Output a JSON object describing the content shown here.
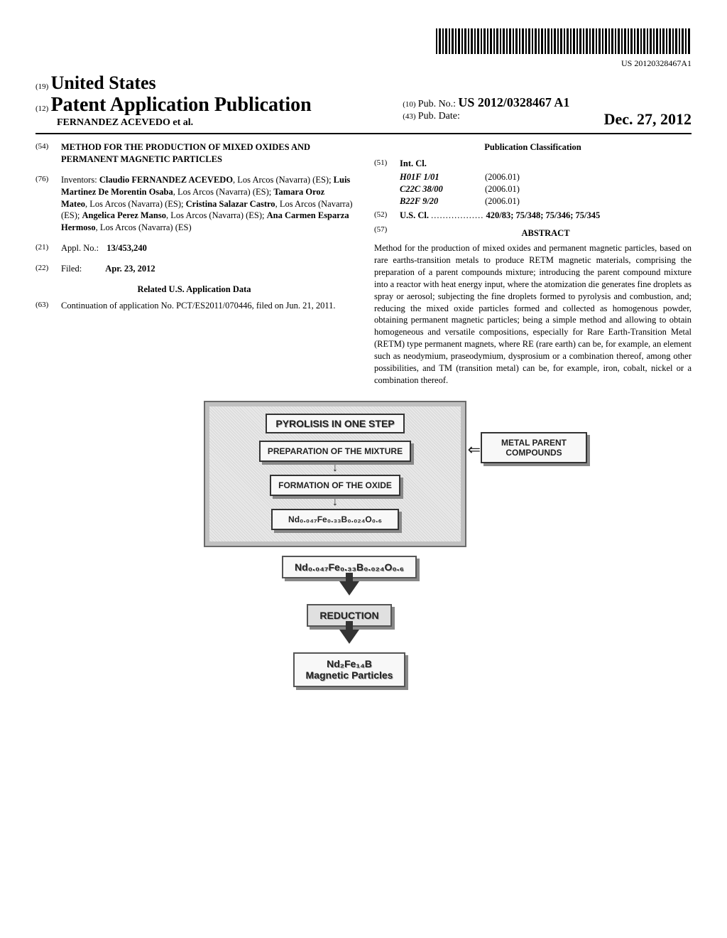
{
  "barcode_number": "US 20120328467A1",
  "header": {
    "prefix19": "(19)",
    "country": "United States",
    "prefix12": "(12)",
    "pub_type": "Patent Application Publication",
    "applicant": "FERNANDEZ ACEVEDO et al.",
    "prefix10": "(10)",
    "pubno_label": "Pub. No.:",
    "pubno": "US 2012/0328467 A1",
    "prefix43": "(43)",
    "pubdate_label": "Pub. Date:",
    "pubdate": "Dec. 27, 2012"
  },
  "left": {
    "n54": "(54)",
    "title": "METHOD FOR THE PRODUCTION OF MIXED OXIDES AND PERMANENT MAGNETIC PARTICLES",
    "n76": "(76)",
    "inventors_label": "Inventors:",
    "inventors_html": "<b>Claudio FERNANDEZ ACEVEDO</b>, Los Arcos (Navarra) (ES); <b>Luis Martinez De Morentin Osaba</b>, Los Arcos (Navarra) (ES); <b>Tamara Oroz Mateo</b>, Los Arcos (Navarra) (ES); <b>Cristina Salazar Castro</b>, Los Arcos (Navarra) (ES); <b>Angelica Perez Manso</b>, Los Arcos (Navarra) (ES); <b>Ana Carmen Esparza Hermoso</b>, Los Arcos (Navarra) (ES)",
    "n21": "(21)",
    "applno_label": "Appl. No.:",
    "applno": "13/453,240",
    "n22": "(22)",
    "filed_label": "Filed:",
    "filed": "Apr. 23, 2012",
    "related_title": "Related U.S. Application Data",
    "n63": "(63)",
    "continuation": "Continuation of application No. PCT/ES2011/070446, filed on Jun. 21, 2011."
  },
  "right": {
    "classification_title": "Publication Classification",
    "n51": "(51)",
    "intcl_label": "Int. Cl.",
    "intcl": [
      {
        "code": "H01F 1/01",
        "year": "(2006.01)"
      },
      {
        "code": "C22C 38/00",
        "year": "(2006.01)"
      },
      {
        "code": "B22F 9/20",
        "year": "(2006.01)"
      }
    ],
    "n52": "(52)",
    "uscl_label": "U.S. Cl.",
    "uscl_dots": "..................",
    "uscl": "420/83; 75/348; 75/346; 75/345",
    "n57": "(57)",
    "abstract_title": "ABSTRACT",
    "abstract": "Method for the production of mixed oxides and permanent magnetic particles, based on rare earths-transition metals to produce RETM magnetic materials, comprising the preparation of a parent compounds mixture; introducing the parent compound mixture into a reactor with heat energy input, where the atomization die generates fine droplets as spray or aerosol; subjecting the fine droplets formed to pyrolysis and combustion, and; reducing the mixed oxide particles formed and collected as homogenous powder, obtaining permanent magnetic particles; being a simple method and allowing to obtain homogeneous and versatile compositions, especially for Rare Earth-Transition Metal (RETM) type permanent magnets, where RE (rare earth) can be, for example, an element such as neodymium, praseodymium, dysprosium or a combination thereof, among other possibilities, and TM (transition metal) can be, for example, iron, cobalt, nickel or a combination thereof."
  },
  "diagram": {
    "panel_title": "PYROLISIS IN ONE STEP",
    "box1": "PREPARATION OF THE MIXTURE",
    "box2": "FORMATION OF THE OXIDE",
    "box3": "Nd₀.₀₄₇Fe₀.₃₃B₀.₀₂₄O₀.₆",
    "side_box": "METAL PARENT COMPOUNDS",
    "mid_box": "Nd₀.₀₄₇Fe₀.₃₃B₀.₀₂₄O₀.₆",
    "reduction": "REDUCTION",
    "final1": "Nd₂Fe₁₄B",
    "final2": "Magnetic Particles"
  }
}
